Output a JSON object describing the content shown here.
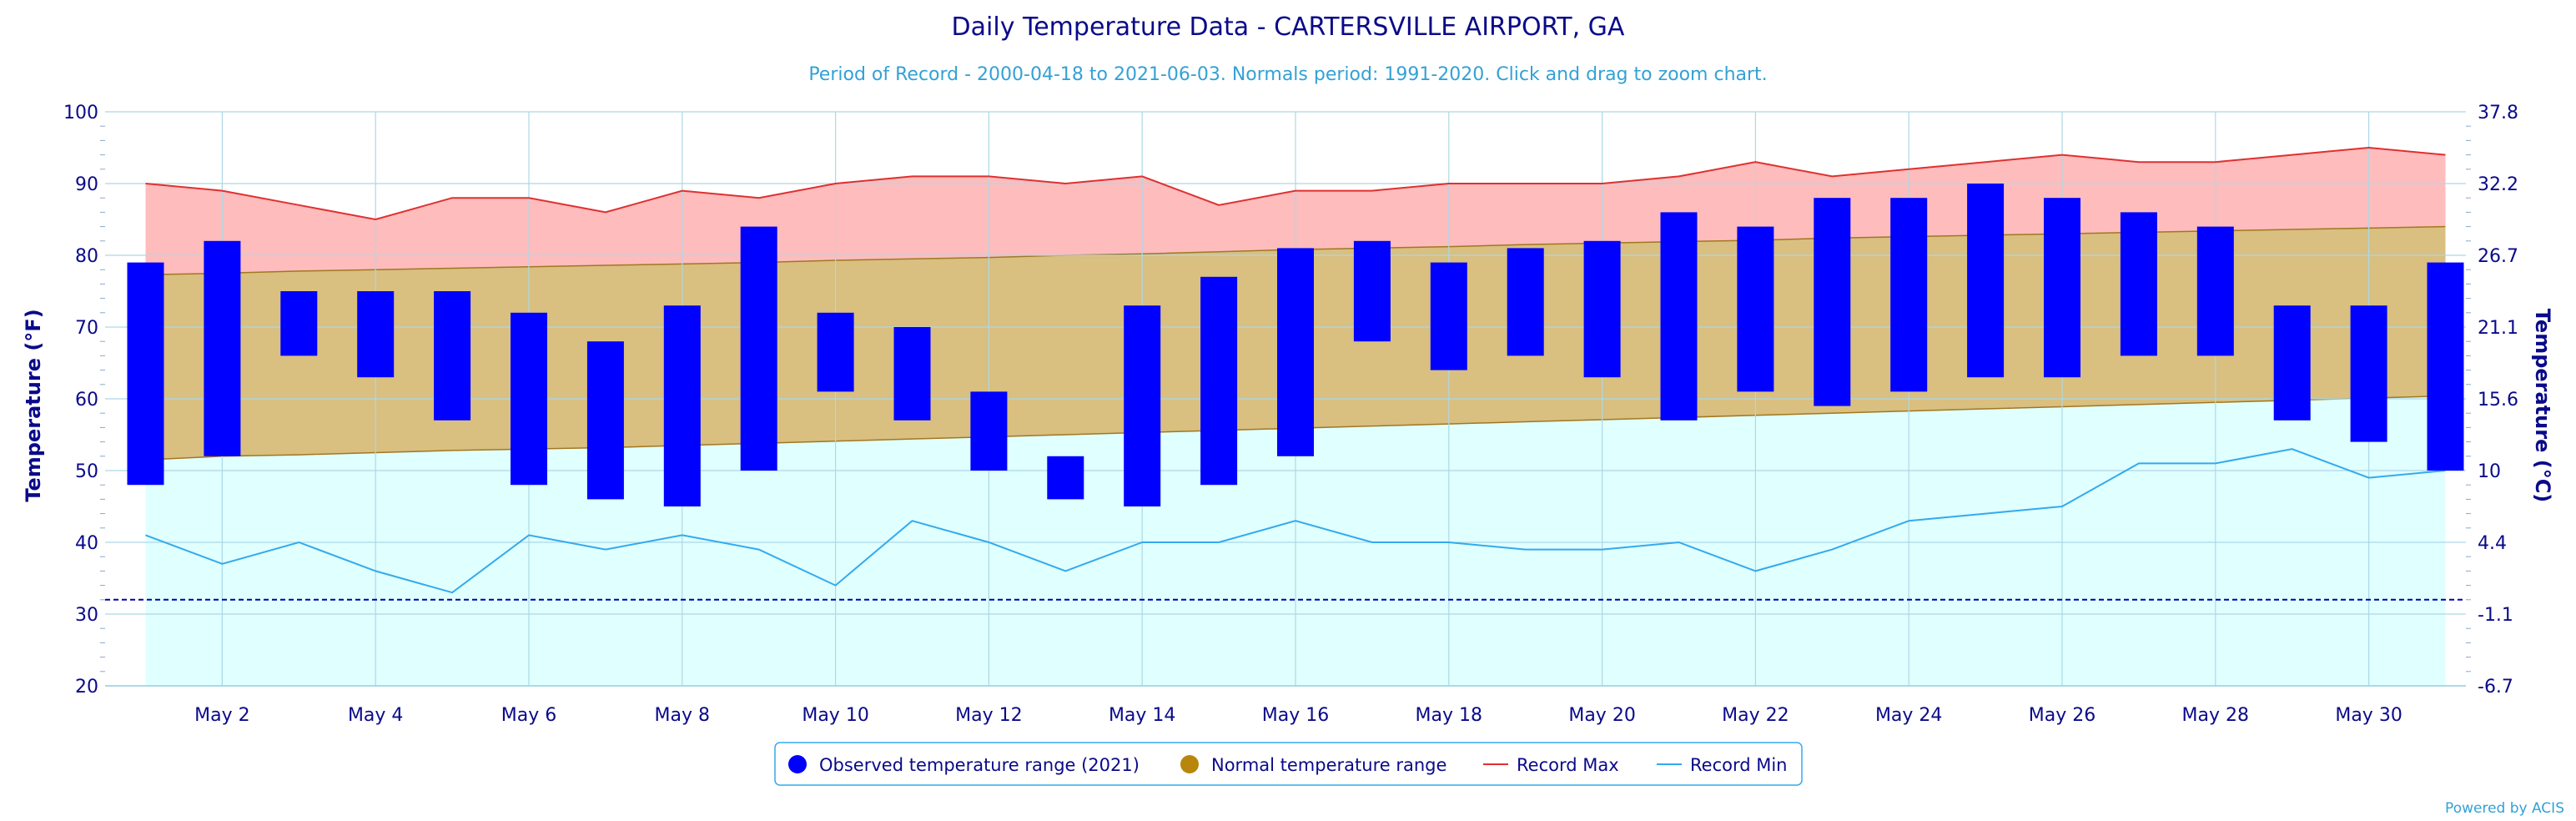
{
  "title": "Daily Temperature Data - CARTERSVILLE AIRPORT, GA",
  "subtitle": "Period of Record - 2000-04-18 to 2021-06-03. Normals period: 1991-2020. Click and drag to zoom chart.",
  "credit": "Powered by ACIS",
  "colors": {
    "title": "#0a0a8a",
    "subtitle": "#33a1d6",
    "axis_text": "#0a0a8a",
    "observed": "#0000ff",
    "normal_fill": "#d9bf80",
    "normal_line": "#a07820",
    "normal_marker": "#b8860b",
    "record_max_fill": "#ffbcbc",
    "record_max_line": "#e03030",
    "record_min_fill": "#e0ffff",
    "record_min_line": "#33aaee",
    "freeze_line": "#0000aa",
    "gridline": "#add8e6",
    "legend_border": "#33aaee"
  },
  "chart_data": {
    "type": "bar",
    "xlabel": "",
    "ylabel": "Temperature (°F)",
    "ylabel_right": "Temperature (°C)",
    "ylim": [
      20,
      100
    ],
    "yticks": [
      20,
      30,
      40,
      50,
      60,
      70,
      80,
      90,
      100
    ],
    "yticks_right": [
      "-6.7",
      "-1.1",
      "4.4",
      "10",
      "15.6",
      "21.1",
      "26.7",
      "32.2",
      "37.8"
    ],
    "freezing_line": 32,
    "grid": true,
    "legend_placement": "bottom-center",
    "days": [
      1,
      2,
      3,
      4,
      5,
      6,
      7,
      8,
      9,
      10,
      11,
      12,
      13,
      14,
      15,
      16,
      17,
      18,
      19,
      20,
      21,
      22,
      23,
      24,
      25,
      26,
      27,
      28,
      29,
      30,
      31
    ],
    "xtick_days": [
      2,
      4,
      6,
      8,
      10,
      12,
      14,
      16,
      18,
      20,
      22,
      24,
      26,
      28,
      30
    ],
    "xtick_labels": [
      "May 2",
      "May 4",
      "May 6",
      "May 8",
      "May 10",
      "May 12",
      "May 14",
      "May 16",
      "May 18",
      "May 20",
      "May 22",
      "May 24",
      "May 26",
      "May 28",
      "May 30"
    ],
    "series": [
      {
        "name": "Observed temperature range (2021)",
        "kind": "range-bar",
        "low": [
          48,
          52,
          66,
          63,
          57,
          48,
          46,
          45,
          50,
          61,
          57,
          50,
          46,
          45,
          48,
          52,
          68,
          64,
          66,
          63,
          57,
          61,
          59,
          61,
          63,
          63,
          66,
          66,
          57,
          54,
          50
        ],
        "high": [
          79,
          82,
          75,
          75,
          75,
          72,
          68,
          73,
          84,
          72,
          70,
          61,
          52,
          73,
          77,
          81,
          82,
          79,
          81,
          82,
          86,
          84,
          88,
          88,
          90,
          88,
          86,
          84,
          73,
          73,
          79
        ]
      },
      {
        "name": "Normal temperature range",
        "kind": "band",
        "low": [
          51.5,
          52,
          52.2,
          52.5,
          52.8,
          53,
          53.2,
          53.5,
          53.8,
          54.1,
          54.4,
          54.7,
          55,
          55.3,
          55.6,
          55.9,
          56.2,
          56.5,
          56.8,
          57.1,
          57.4,
          57.7,
          58,
          58.3,
          58.6,
          58.9,
          59.2,
          59.5,
          59.8,
          60.1,
          60.4
        ],
        "high": [
          77.3,
          77.5,
          77.8,
          78,
          78.2,
          78.4,
          78.6,
          78.8,
          79,
          79.3,
          79.5,
          79.7,
          80,
          80.2,
          80.5,
          80.8,
          81,
          81.2,
          81.5,
          81.7,
          81.9,
          82.1,
          82.4,
          82.6,
          82.8,
          83,
          83.2,
          83.4,
          83.6,
          83.8,
          84
        ]
      },
      {
        "name": "Record Max",
        "kind": "line",
        "values": [
          90,
          89,
          87,
          85,
          88,
          88,
          86,
          89,
          88,
          90,
          91,
          91,
          90,
          91,
          87,
          89,
          89,
          90,
          90,
          90,
          91,
          93,
          91,
          92,
          93,
          94,
          93,
          93,
          94,
          95,
          94
        ]
      },
      {
        "name": "Record Min",
        "kind": "line",
        "values": [
          41,
          37,
          40,
          36,
          33,
          41,
          39,
          41,
          39,
          34,
          43,
          40,
          36,
          40,
          40,
          43,
          40,
          40,
          39,
          39,
          40,
          36,
          39,
          43,
          44,
          45,
          51,
          51,
          53,
          49,
          50
        ]
      }
    ]
  }
}
